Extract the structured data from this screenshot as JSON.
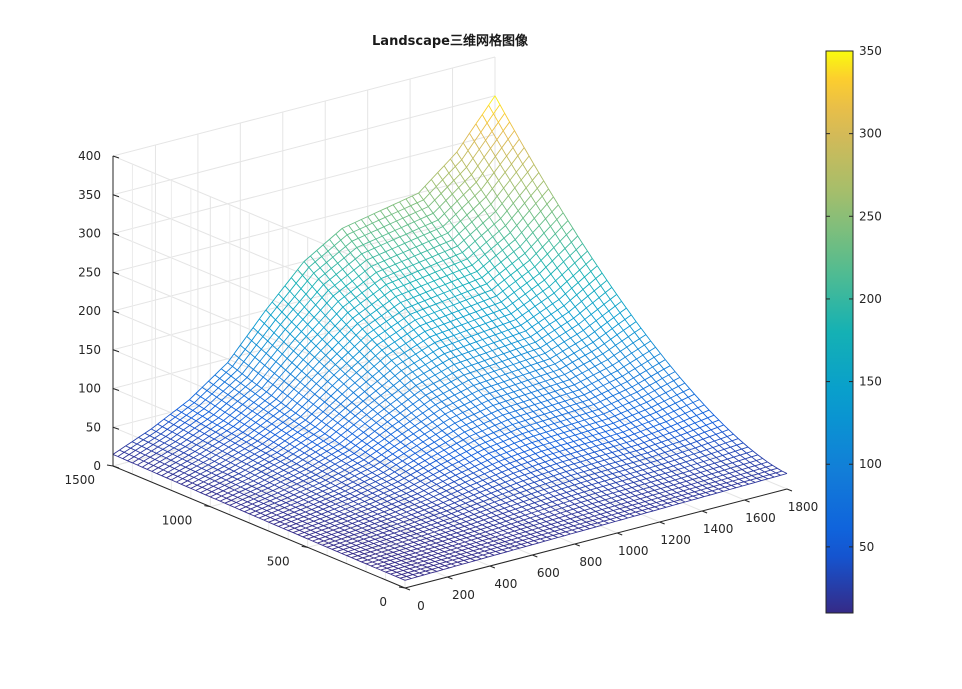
{
  "chart_data": {
    "type": "surface-mesh",
    "title": "Landscape三维网格图像",
    "xlabel": "",
    "ylabel": "",
    "zlabel": "",
    "xlim": [
      0,
      1800
    ],
    "ylim": [
      0,
      1500
    ],
    "zlim": [
      0,
      400
    ],
    "x_ticks": [
      "0",
      "200",
      "400",
      "600",
      "800",
      "1000",
      "1200",
      "1400",
      "1600",
      "1800"
    ],
    "y_ticks": [
      "0",
      "500",
      "1000",
      "1500"
    ],
    "z_ticks": [
      "0",
      "50",
      "100",
      "150",
      "200",
      "250",
      "300",
      "350",
      "400"
    ],
    "colormap": "parula",
    "color_range": [
      10,
      350
    ],
    "colorbar_ticks": [
      "50",
      "100",
      "150",
      "200",
      "250",
      "300",
      "350"
    ],
    "grid": true,
    "corner_heights": {
      "x0_y0": 10,
      "x1800_y0": 20,
      "x0_y1500": 15,
      "x1800_y1500": 350
    },
    "peak": {
      "x": 1700,
      "y": 1500,
      "z": 350
    },
    "ridge_along_y1500": [
      15,
      35,
      60,
      95,
      150,
      200,
      230,
      240,
      250,
      290,
      350
    ]
  }
}
